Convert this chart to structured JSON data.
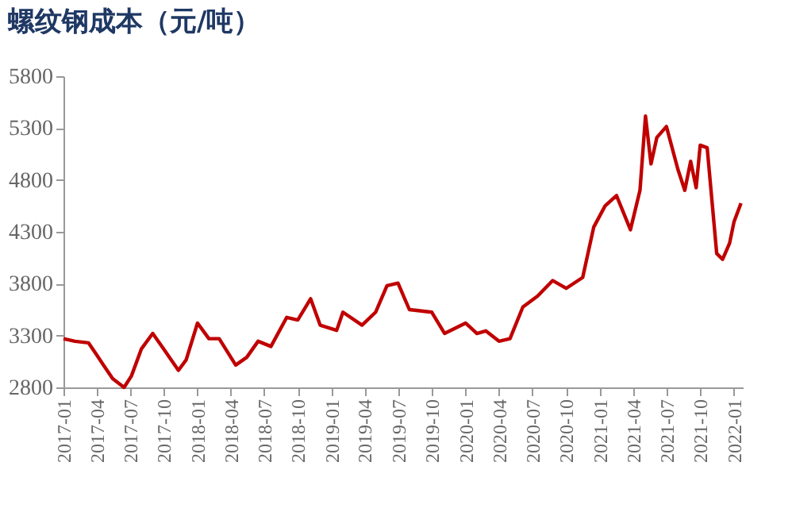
{
  "chart_data": {
    "type": "line",
    "title": "螺纹钢成本（元/吨）",
    "x": [
      "2017-01-01",
      "2017-02-01",
      "2017-03-10",
      "2017-04-01",
      "2017-04-20",
      "2017-05-15",
      "2017-06-15",
      "2017-07-05",
      "2017-08-01",
      "2017-09-01",
      "2017-10-01",
      "2017-11-10",
      "2017-12-01",
      "2018-01-01",
      "2018-02-01",
      "2018-03-01",
      "2018-04-15",
      "2018-05-15",
      "2018-06-15",
      "2018-07-20",
      "2018-09-01",
      "2018-10-01",
      "2018-11-05",
      "2018-12-01",
      "2019-01-15",
      "2019-02-01",
      "2019-03-25",
      "2019-05-01",
      "2019-06-01",
      "2019-07-01",
      "2019-08-01",
      "2019-10-01",
      "2019-11-05",
      "2020-01-01",
      "2020-02-01",
      "2020-02-25",
      "2020-04-01",
      "2020-05-01",
      "2020-06-05",
      "2020-07-15",
      "2020-08-25",
      "2020-10-01",
      "2020-11-15",
      "2020-12-15",
      "2021-01-15",
      "2021-02-15",
      "2021-03-25",
      "2021-04-20",
      "2021-05-05",
      "2021-05-20",
      "2021-06-05",
      "2021-07-01",
      "2021-08-01",
      "2021-08-20",
      "2021-09-05",
      "2021-09-20",
      "2021-10-01",
      "2021-10-20",
      "2021-11-15",
      "2021-12-01",
      "2021-12-20",
      "2022-01-01",
      "2022-01-20"
    ],
    "series": [
      {
        "color": "#c00000",
        "values": [
          3270,
          3245,
          3230,
          3115,
          3015,
          2885,
          2800,
          2910,
          3170,
          3320,
          3170,
          2965,
          3065,
          3420,
          3270,
          3270,
          3015,
          3090,
          3245,
          3195,
          3475,
          3450,
          3655,
          3400,
          3350,
          3525,
          3400,
          3525,
          3780,
          3805,
          3550,
          3525,
          3320,
          3420,
          3320,
          3345,
          3245,
          3270,
          3575,
          3680,
          3830,
          3755,
          3860,
          4345,
          4550,
          4650,
          4320,
          4700,
          5415,
          4955,
          5210,
          5315,
          4905,
          4700,
          4980,
          4725,
          5135,
          5110,
          4090,
          4035,
          4190,
          4395,
          4575
        ]
      }
    ],
    "xlim": [
      "2017-01-01",
      "2022-01-25"
    ],
    "xticks": [
      "2017-01",
      "2017-04",
      "2017-07",
      "2017-10",
      "2018-01",
      "2018-04",
      "2018-07",
      "2018-10",
      "2019-01",
      "2019-04",
      "2019-07",
      "2019-10",
      "2020-01",
      "2020-04",
      "2020-07",
      "2020-10",
      "2021-01",
      "2021-04",
      "2021-07",
      "2021-10",
      "2022-01"
    ],
    "ylim": [
      2800,
      5800
    ],
    "yticks": [
      2800,
      3300,
      3800,
      4300,
      4800,
      5300,
      5800
    ],
    "grid": false,
    "marker": "none",
    "line_style": "solid"
  }
}
